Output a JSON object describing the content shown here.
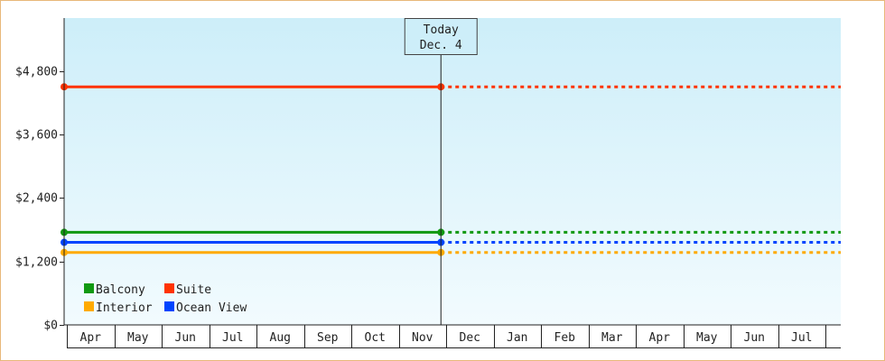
{
  "chart_data": {
    "type": "line",
    "title": "",
    "xlabel": "",
    "ylabel": "",
    "ylim": [
      0,
      5800
    ],
    "y_ticks": [
      0,
      1200,
      2400,
      3600,
      4800
    ],
    "y_tick_labels": [
      "$0",
      "$1,200",
      "$2,400",
      "$3,600",
      "$4,800"
    ],
    "x_categories": [
      "Apr",
      "May",
      "Jun",
      "Jul",
      "Aug",
      "Sep",
      "Oct",
      "Nov",
      "Dec",
      "Jan",
      "Feb",
      "Mar",
      "Apr",
      "May",
      "Jun",
      "Jul"
    ],
    "today_marker": {
      "label_line1": "Today",
      "label_line2": "Dec. 4",
      "category_index": 7.9
    },
    "grid": false,
    "legend_placement": "bottom-left",
    "series": [
      {
        "name": "Suite",
        "color": "#ff3300",
        "value": 4500,
        "historical": true,
        "projected": true
      },
      {
        "name": "Balcony",
        "color": "#119911",
        "value": 1750,
        "historical": true,
        "projected": true
      },
      {
        "name": "Ocean View",
        "color": "#0044ff",
        "value": 1560,
        "historical": true,
        "projected": true
      },
      {
        "name": "Interior",
        "color": "#ffaa00",
        "value": 1370,
        "historical": true,
        "projected": true
      }
    ],
    "legend": [
      {
        "name": "Balcony",
        "color": "#119911"
      },
      {
        "name": "Suite",
        "color": "#ff3300"
      },
      {
        "name": "Interior",
        "color": "#ffaa00"
      },
      {
        "name": "Ocean View",
        "color": "#0044ff"
      }
    ],
    "colors": {
      "plot_bg_top": "#cdeef9",
      "plot_bg_bottom": "#f2fbfe",
      "frame_border": "#e8b87a",
      "axis": "#222222"
    }
  }
}
